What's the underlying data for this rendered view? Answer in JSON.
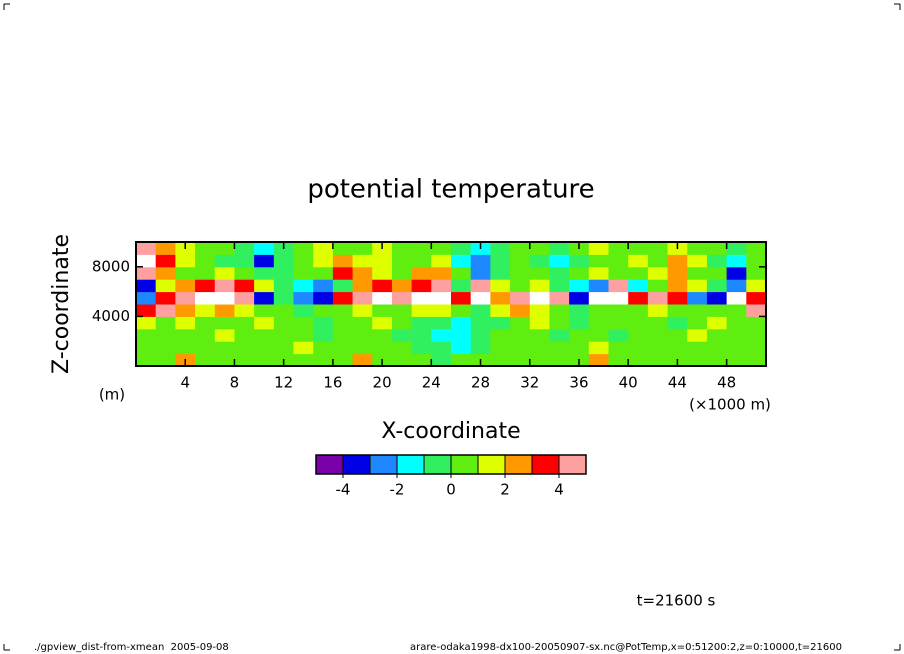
{
  "chart_data": {
    "type": "heatmap",
    "title": "potential temperature",
    "x_label": "X-coordinate",
    "y_label": "Z-coordinate",
    "x_unit": "(×1000 m)",
    "y_unit": "(m)",
    "time_label": "t=21600 s",
    "footer_left": "./gpview_dist-from-xmean  2005-09-08",
    "footer_right": "arare-odaka1998-dx100-20050907-sx.nc@PotTemp,x=0:51200:2,z=0:10000,t=21600",
    "x": [
      0.8,
      2.4,
      4.0,
      5.6,
      7.2,
      8.8,
      10.4,
      12.0,
      13.6,
      15.2,
      16.8,
      18.4,
      20.0,
      21.6,
      23.2,
      24.8,
      26.4,
      28.0,
      29.6,
      31.2,
      32.8,
      34.4,
      36.0,
      37.6,
      39.2,
      40.8,
      42.4,
      44.0,
      45.6,
      47.2,
      48.8,
      50.4
    ],
    "y": [
      500,
      1500,
      2500,
      3500,
      4500,
      5500,
      6500,
      7500,
      8500,
      9500
    ],
    "values": [
      [
        0.5,
        0.5,
        2.5,
        0.5,
        0.5,
        0.5,
        0.5,
        0.5,
        0.5,
        0.5,
        0.5,
        2.5,
        0.5,
        0.5,
        0.5,
        -0.5,
        0.5,
        0.5,
        0.5,
        0.5,
        0.5,
        0.5,
        0.5,
        2.5,
        0.5,
        0.5,
        0.5,
        0.5,
        0.5,
        0.5,
        0.5,
        0.5
      ],
      [
        0.5,
        0.5,
        0.5,
        0.5,
        0.5,
        0.5,
        0.5,
        0.5,
        1.5,
        0.5,
        0.5,
        0.5,
        0.5,
        0.5,
        -0.5,
        -0.5,
        -1.5,
        -0.5,
        0.5,
        0.5,
        0.5,
        0.5,
        0.5,
        1.5,
        0.5,
        0.5,
        0.5,
        0.5,
        0.5,
        0.5,
        0.5,
        0.5
      ],
      [
        0.5,
        0.5,
        0.5,
        0.5,
        1.5,
        0.5,
        0.5,
        0.5,
        0.5,
        -0.5,
        0.5,
        0.5,
        0.5,
        -0.5,
        -0.5,
        -1.5,
        -1.5,
        -0.5,
        0.5,
        0.5,
        0.5,
        -0.5,
        0.5,
        0.5,
        -0.5,
        0.5,
        0.5,
        0.5,
        1.5,
        0.5,
        0.5,
        0.5
      ],
      [
        1.5,
        0.5,
        1.5,
        0.5,
        0.5,
        0.5,
        1.5,
        0.5,
        0.5,
        -0.5,
        0.5,
        0.5,
        1.5,
        0.5,
        -0.5,
        -0.5,
        -1.5,
        -0.5,
        -0.5,
        0.5,
        1.5,
        0.5,
        -0.5,
        0.5,
        0.5,
        0.5,
        0.5,
        -0.5,
        0.5,
        1.5,
        0.5,
        0.5
      ],
      [
        3.5,
        4.5,
        2.5,
        1.5,
        2.5,
        1.5,
        0.5,
        0.5,
        -0.5,
        0.5,
        0.5,
        1.5,
        0.5,
        0.5,
        1.5,
        1.5,
        0.5,
        -0.5,
        1.5,
        2.5,
        1.5,
        0.5,
        -0.5,
        0.5,
        0.5,
        0.5,
        1.5,
        0.5,
        0.5,
        0.5,
        0.5,
        4.5
      ],
      [
        -2.5,
        3.5,
        4.5,
        5.5,
        6.5,
        4.5,
        -3.5,
        -0.5,
        -2.5,
        -3.5,
        3.5,
        4.5,
        5.5,
        4.5,
        5.5,
        6.5,
        3.5,
        5.5,
        2.5,
        4.5,
        5.5,
        4.5,
        -3.5,
        6.5,
        6.5,
        3.5,
        4.5,
        3.5,
        -2.5,
        -3.5,
        5.5,
        3.5
      ],
      [
        -3.5,
        1.5,
        2.5,
        3.5,
        4.5,
        3.5,
        1.5,
        -0.5,
        -1.5,
        -2.5,
        -0.5,
        2.5,
        3.5,
        2.5,
        3.5,
        4.5,
        -0.5,
        4.5,
        1.5,
        0.5,
        1.5,
        -0.5,
        -1.5,
        -2.5,
        4.5,
        -1.5,
        0.5,
        2.5,
        1.5,
        -0.5,
        -2.5,
        1.5
      ],
      [
        4.5,
        2.5,
        0.5,
        0.5,
        1.5,
        0.5,
        -0.5,
        -0.5,
        0.5,
        0.5,
        3.5,
        2.5,
        1.5,
        0.5,
        2.5,
        2.5,
        0.5,
        -2.5,
        -0.5,
        0.5,
        0.5,
        -0.5,
        0.5,
        1.5,
        0.5,
        0.5,
        1.5,
        2.5,
        0.5,
        0.5,
        -3.5,
        0.5
      ],
      [
        5.5,
        3.5,
        1.5,
        0.5,
        -0.5,
        -0.5,
        -3.5,
        -0.5,
        0.5,
        1.5,
        2.5,
        1.5,
        1.5,
        0.5,
        0.5,
        1.5,
        -1.5,
        -2.5,
        -0.5,
        0.5,
        -0.5,
        -1.5,
        -0.5,
        0.5,
        0.5,
        1.5,
        0.5,
        2.5,
        1.5,
        -0.5,
        -1.5,
        0.5
      ],
      [
        4.5,
        2.5,
        1.5,
        0.5,
        0.5,
        -0.5,
        -1.5,
        -0.5,
        0.5,
        1.5,
        0.5,
        0.5,
        1.5,
        0.5,
        0.5,
        0.5,
        -0.5,
        -1.5,
        -0.5,
        0.5,
        0.5,
        -0.5,
        0.5,
        1.5,
        0.5,
        0.5,
        0.5,
        1.5,
        0.5,
        0.5,
        -0.5,
        0.5
      ]
    ],
    "xlim": [
      0,
      51.2
    ],
    "ylim": [
      0,
      10000
    ],
    "xticks": [
      4,
      8,
      12,
      16,
      20,
      24,
      28,
      32,
      36,
      40,
      44,
      48
    ],
    "yticks": [
      4000,
      8000
    ],
    "levels": [
      -5,
      -4,
      -3,
      -2,
      -1,
      0,
      1,
      2,
      3,
      4,
      5
    ],
    "colors": [
      "#7a00aa",
      "#0000e6",
      "#1e88ff",
      "#00ffff",
      "#30f060",
      "#60ee10",
      "#ddff00",
      "#ff9900",
      "#ff0000",
      "#ffa0a0"
    ],
    "outside_color": "#ffffff",
    "colorbar_ticks": [
      -4,
      -2,
      0,
      2,
      4
    ]
  }
}
